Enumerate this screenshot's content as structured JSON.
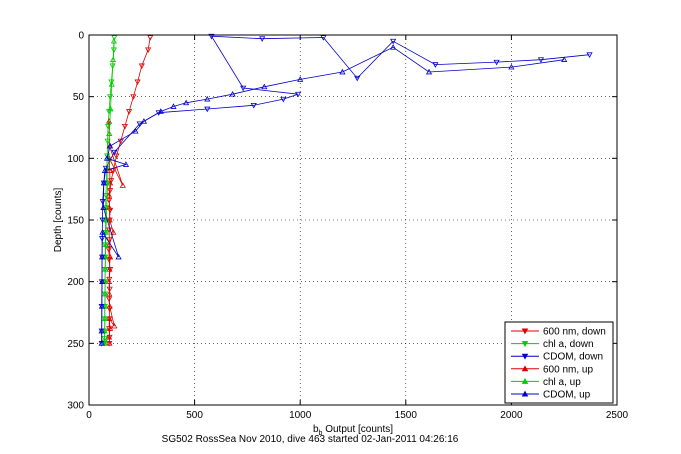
{
  "chart_data": {
    "type": "scatter",
    "title": "",
    "xlabel_main": "b",
    "xlabel_sub": "b",
    "xlabel_rest": " Output [counts]",
    "ylabel": "Depth [counts]",
    "caption": "SG502 RossSea Nov 2010, dive 463 started 02-Jan-2011 04:26:16",
    "xlim": [
      0,
      2500
    ],
    "ylim": [
      0,
      300
    ],
    "y_reversed": true,
    "grid": "dotted",
    "legend_position": "bottom-right",
    "xticks": [
      0,
      500,
      1000,
      1500,
      2000,
      2500
    ],
    "yticks": [
      0,
      50,
      100,
      150,
      200,
      250,
      300
    ],
    "series": [
      {
        "name": "600 nm, down",
        "color": "#dd0000",
        "marker": "triangle-down",
        "style": "line-marker",
        "x": [
          290,
          280,
          250,
          230,
          210,
          190,
          170,
          150,
          130,
          115,
          105,
          100,
          95,
          100,
          98,
          95,
          96,
          94,
          95,
          100,
          96,
          98,
          95,
          97,
          96,
          95,
          97,
          96
        ],
        "y": [
          2,
          12,
          25,
          38,
          50,
          62,
          74,
          86,
          98,
          110,
          118,
          126,
          134,
          142,
          150,
          158,
          166,
          174,
          182,
          190,
          198,
          206,
          214,
          222,
          230,
          238,
          245,
          250
        ]
      },
      {
        "name": "chl a, down",
        "color": "#00cc00",
        "marker": "triangle-down",
        "style": "line-marker",
        "x": [
          120,
          118,
          112,
          106,
          100,
          95,
          90,
          88,
          86,
          84,
          82,
          80,
          79,
          78,
          78,
          77,
          77,
          76,
          76,
          76,
          75,
          75,
          75,
          74,
          74,
          74
        ],
        "y": [
          2,
          12,
          25,
          38,
          50,
          62,
          74,
          86,
          98,
          110,
          120,
          130,
          140,
          150,
          160,
          170,
          180,
          190,
          200,
          210,
          220,
          230,
          240,
          246,
          249,
          250
        ]
      },
      {
        "name": "CDOM, down",
        "color": "#0000cc",
        "marker": "triangle-down",
        "style": "line-marker",
        "x": [
          2370,
          2140,
          1930,
          1640,
          1440,
          1270,
          1110,
          820,
          580,
          730,
          990,
          920,
          780,
          560,
          330,
          240,
          120,
          80,
          70,
          65,
          64,
          62,
          62,
          61,
          60,
          60,
          60
        ],
        "y": [
          16,
          20,
          22,
          24,
          5,
          35,
          2,
          3,
          1,
          43,
          48,
          52,
          57,
          60,
          63,
          72,
          95,
          108,
          120,
          135,
          150,
          165,
          180,
          200,
          220,
          240,
          250
        ]
      },
      {
        "name": "600 nm, up",
        "color": "#dd0000",
        "marker": "triangle-up",
        "style": "line-marker",
        "x": [
          97,
          95,
          100,
          96,
          120,
          98,
          96,
          95,
          97,
          100,
          96,
          115,
          98,
          96,
          95,
          100,
          98,
          96,
          160,
          97,
          96,
          95
        ],
        "y": [
          250,
          245,
          238,
          230,
          236,
          220,
          210,
          200,
          190,
          180,
          170,
          160,
          150,
          140,
          130,
          120,
          110,
          100,
          122,
          90,
          80,
          70
        ]
      },
      {
        "name": "chl a, up",
        "color": "#00cc00",
        "marker": "triangle-up",
        "style": "line-marker",
        "x": [
          74,
          74,
          75,
          75,
          76,
          76,
          77,
          78,
          79,
          80,
          82,
          84,
          88,
          92,
          96,
          102,
          108,
          114,
          118
        ],
        "y": [
          250,
          240,
          230,
          220,
          210,
          200,
          190,
          180,
          170,
          160,
          150,
          140,
          120,
          100,
          80,
          60,
          40,
          20,
          5
        ]
      },
      {
        "name": "CDOM, up",
        "color": "#0000cc",
        "marker": "triangle-up",
        "style": "line-marker",
        "x": [
          60,
          60,
          61,
          62,
          62,
          64,
          140,
          68,
          70,
          75,
          175,
          85,
          100,
          220,
          260,
          340,
          400,
          460,
          560,
          680,
          830,
          1000,
          1200,
          1440,
          1610,
          2000,
          2250
        ],
        "y": [
          250,
          240,
          220,
          200,
          180,
          160,
          180,
          140,
          120,
          110,
          105,
          100,
          90,
          78,
          70,
          62,
          58,
          55,
          52,
          48,
          42,
          36,
          30,
          10,
          30,
          26,
          20
        ]
      }
    ]
  }
}
